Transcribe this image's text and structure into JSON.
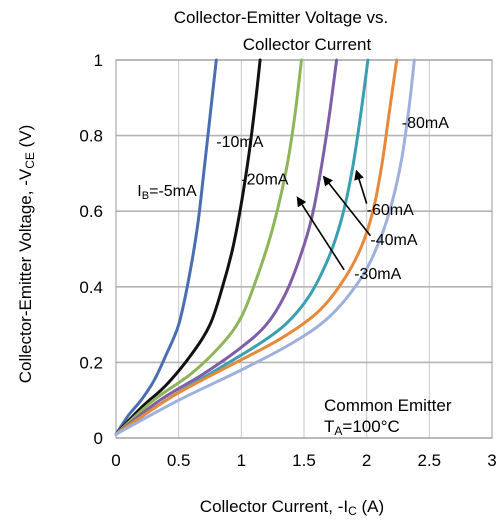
{
  "chart_data": {
    "type": "line",
    "title_line1": "Collector-Emitter Voltage vs.",
    "title_line2": "Collector Current",
    "xlabel": "Collector Current, -I",
    "xlabel_sub": "C",
    "xlabel_unit": " (A)",
    "ylabel": "Collector-Emitter Voltage, -V",
    "ylabel_sub": "CE",
    "ylabel_unit": " (V)",
    "xlim": [
      0,
      3
    ],
    "ylim": [
      0,
      1
    ],
    "x_ticks": [
      "0",
      "0.5",
      "1",
      "1.5",
      "2",
      "2.5",
      "3"
    ],
    "y_ticks": [
      "0",
      "0.2",
      "0.4",
      "0.6",
      "0.8",
      "1"
    ],
    "grid": true,
    "annotation_line1": "Common Emitter",
    "annotation_line2_pre": "T",
    "annotation_line2_sub": "A",
    "annotation_line2_post": "=100°C",
    "series": [
      {
        "name": "-5mA",
        "color": "#4a6fb0",
        "x": [
          0,
          0.1,
          0.2,
          0.3,
          0.4,
          0.5,
          0.58,
          0.65,
          0.7,
          0.75,
          0.8
        ],
        "y": [
          0.01,
          0.06,
          0.1,
          0.15,
          0.22,
          0.3,
          0.42,
          0.56,
          0.7,
          0.85,
          1.0
        ]
      },
      {
        "name": "-10mA",
        "color": "#111111",
        "x": [
          0,
          0.2,
          0.4,
          0.6,
          0.75,
          0.85,
          0.93,
          1.0,
          1.06,
          1.11,
          1.15
        ],
        "y": [
          0.01,
          0.08,
          0.14,
          0.22,
          0.3,
          0.4,
          0.5,
          0.62,
          0.75,
          0.88,
          1.0
        ]
      },
      {
        "name": "-20mA",
        "color": "#8fb55a",
        "x": [
          0,
          0.3,
          0.6,
          0.85,
          1.0,
          1.12,
          1.22,
          1.3,
          1.37,
          1.43,
          1.48
        ],
        "y": [
          0.01,
          0.1,
          0.17,
          0.25,
          0.32,
          0.42,
          0.52,
          0.62,
          0.73,
          0.86,
          1.0
        ]
      },
      {
        "name": "-30mA",
        "color": "#7e5ea6",
        "x": [
          0,
          0.35,
          0.7,
          1.0,
          1.2,
          1.35,
          1.47,
          1.56,
          1.63,
          1.7,
          1.76
        ],
        "y": [
          0.01,
          0.1,
          0.17,
          0.24,
          0.3,
          0.38,
          0.48,
          0.58,
          0.7,
          0.85,
          1.0
        ]
      },
      {
        "name": "-40mA",
        "color": "#3a9fb0",
        "x": [
          0,
          0.4,
          0.8,
          1.1,
          1.35,
          1.55,
          1.7,
          1.8,
          1.88,
          1.95,
          2.01
        ],
        "y": [
          0.01,
          0.1,
          0.18,
          0.24,
          0.3,
          0.38,
          0.48,
          0.58,
          0.7,
          0.85,
          1.0
        ]
      },
      {
        "name": "-60mA",
        "color": "#e8893a",
        "x": [
          0,
          0.45,
          0.9,
          1.3,
          1.6,
          1.8,
          1.95,
          2.05,
          2.12,
          2.18,
          2.24
        ],
        "y": [
          0.01,
          0.11,
          0.19,
          0.26,
          0.33,
          0.41,
          0.5,
          0.6,
          0.72,
          0.86,
          1.0
        ]
      },
      {
        "name": "-80mA",
        "color": "#9fb0dc",
        "x": [
          0,
          0.5,
          1.0,
          1.4,
          1.7,
          1.95,
          2.1,
          2.2,
          2.28,
          2.34,
          2.38
        ],
        "y": [
          0.01,
          0.1,
          0.18,
          0.25,
          0.32,
          0.42,
          0.52,
          0.62,
          0.74,
          0.88,
          1.0
        ]
      }
    ],
    "labels": [
      {
        "text": "I",
        "sub": "B",
        "post": "=-5mA",
        "x": 0.17,
        "y": 0.64
      },
      {
        "text": "-10mA",
        "x": 0.8,
        "y": 0.77
      },
      {
        "text": "-20mA",
        "x": 1.0,
        "y": 0.67
      },
      {
        "text": "-30mA",
        "x": 1.9,
        "y": 0.42
      },
      {
        "text": "-40mA",
        "x": 2.03,
        "y": 0.51
      },
      {
        "text": "-60mA",
        "x": 2.0,
        "y": 0.59
      },
      {
        "text": "-80mA",
        "x": 2.28,
        "y": 0.82
      }
    ],
    "arrows": [
      {
        "from": [
          1.82,
          0.445
        ],
        "to": [
          1.45,
          0.635
        ]
      },
      {
        "from": [
          2.03,
          0.535
        ],
        "to": [
          1.66,
          0.69
        ]
      },
      {
        "from": [
          2.0,
          0.62
        ],
        "to": [
          1.92,
          0.705
        ]
      }
    ]
  }
}
